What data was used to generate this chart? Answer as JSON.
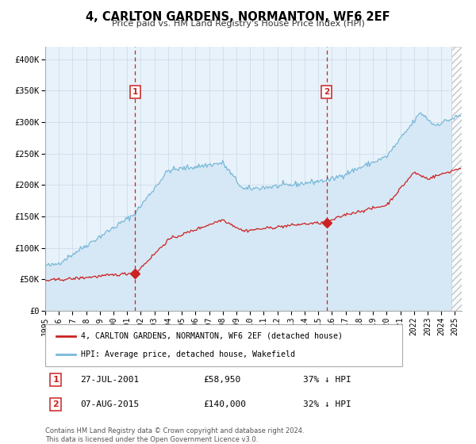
{
  "title": "4, CARLTON GARDENS, NORMANTON, WF6 2EF",
  "subtitle": "Price paid vs. HM Land Registry's House Price Index (HPI)",
  "x_start": 1995.0,
  "x_end": 2025.5,
  "y_min": 0,
  "y_max": 420000,
  "y_ticks": [
    0,
    50000,
    100000,
    150000,
    200000,
    250000,
    300000,
    350000,
    400000
  ],
  "y_tick_labels": [
    "£0",
    "£50K",
    "£100K",
    "£150K",
    "£200K",
    "£250K",
    "£300K",
    "£350K",
    "£400K"
  ],
  "x_ticks": [
    1995,
    1996,
    1997,
    1998,
    1999,
    2000,
    2001,
    2002,
    2003,
    2004,
    2005,
    2006,
    2007,
    2008,
    2009,
    2010,
    2011,
    2012,
    2013,
    2014,
    2015,
    2016,
    2017,
    2018,
    2019,
    2020,
    2021,
    2022,
    2023,
    2024,
    2025
  ],
  "hpi_color": "#7ab8d9",
  "hpi_fill_color": "#d6e8f5",
  "price_color": "#cc2222",
  "bg_color": "#e8f2fa",
  "grid_color": "#c8d8e8",
  "sale1_x": 2001.573,
  "sale1_y": 58950,
  "sale2_x": 2015.605,
  "sale2_y": 140000,
  "sale1_date": "27-JUL-2001",
  "sale1_price": "£58,950",
  "sale1_hpi": "37% ↓ HPI",
  "sale2_date": "07-AUG-2015",
  "sale2_price": "£140,000",
  "sale2_hpi": "32% ↓ HPI",
  "legend_line1": "4, CARLTON GARDENS, NORMANTON, WF6 2EF (detached house)",
  "legend_line2": "HPI: Average price, detached house, Wakefield",
  "footnote1": "Contains HM Land Registry data © Crown copyright and database right 2024.",
  "footnote2": "This data is licensed under the Open Government Licence v3.0.",
  "hatch_start": 2024.75
}
